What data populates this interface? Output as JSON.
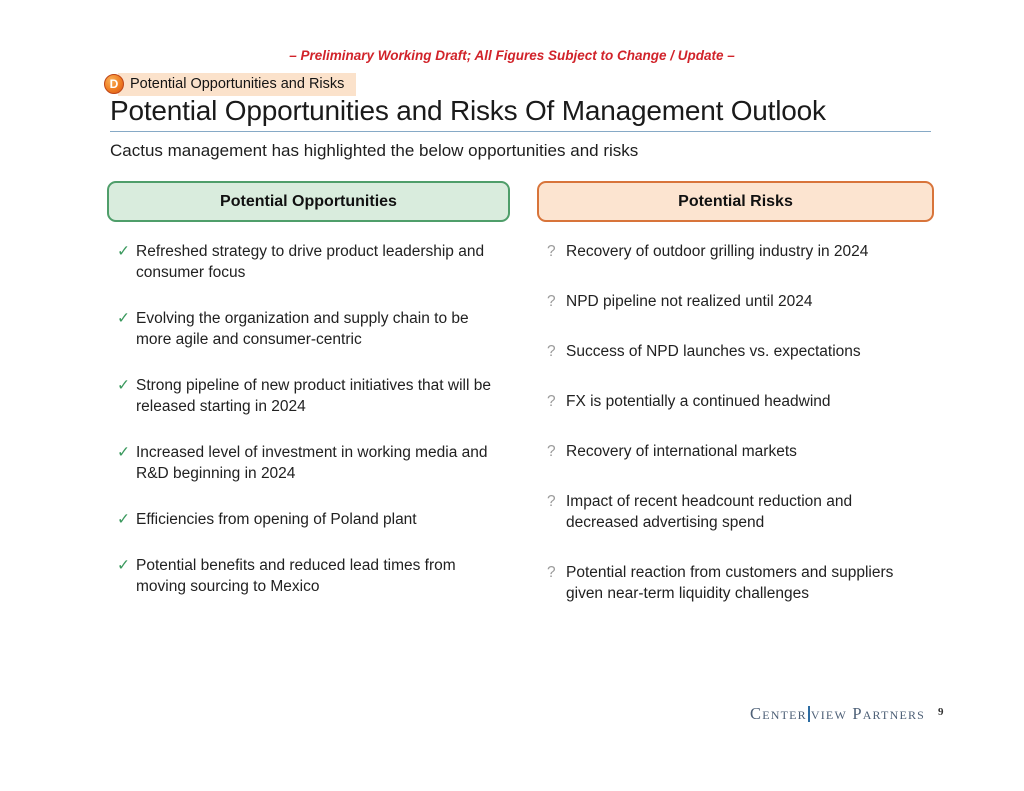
{
  "colors": {
    "draft_red": "#d1232a",
    "badge_orange": "#ef7d23",
    "tag_highlight": "#fbe2cb",
    "title_rule_blue": "#86a9c6",
    "opportunities_bg": "#d9ecdd",
    "opportunities_border": "#4f9e6a",
    "risks_bg": "#fce4d0",
    "risks_border": "#d8743a",
    "check_green": "#3c9a5f",
    "qmark_gray": "#9b9b9b",
    "logo_navy": "#4e6077"
  },
  "header": {
    "draft_notice": "– Preliminary Working Draft; All Figures Subject to Change / Update –",
    "section_badge": "D",
    "section_label": "Potential Opportunities and Risks",
    "title": "Potential Opportunities and Risks Of Management Outlook",
    "subtitle": "Cactus management has highlighted the below opportunities and risks"
  },
  "opportunities": {
    "header": "Potential Opportunities",
    "bullet": "✓",
    "items": [
      "Refreshed strategy to drive product leadership and consumer focus",
      "Evolving the organization and supply chain to be more agile and consumer-centric",
      "Strong pipeline of new product initiatives that will be released starting in 2024",
      "Increased level of investment in working media and R&D beginning in 2024",
      "Efficiencies from opening of Poland plant",
      "Potential benefits and reduced lead times from moving sourcing to Mexico"
    ]
  },
  "risks": {
    "header": "Potential Risks",
    "bullet": "?",
    "items": [
      "Recovery of outdoor grilling industry in 2024",
      "NPD pipeline not realized until 2024",
      "Success of NPD launches vs. expectations",
      "FX is potentially a continued headwind",
      "Recovery of international markets",
      "Impact of recent headcount reduction and decreased advertising spend",
      "Potential reaction from customers and suppliers given near-term liquidity challenges"
    ]
  },
  "footer": {
    "logo_left": "Center",
    "logo_right": "view Partners",
    "page_number": "9"
  }
}
